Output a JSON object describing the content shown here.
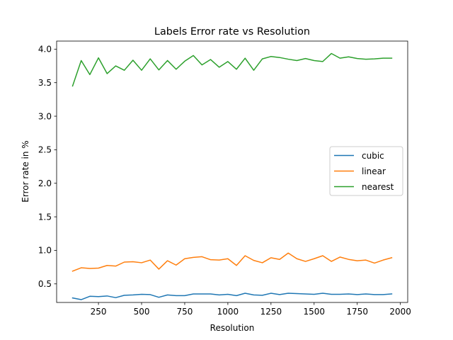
{
  "chart_data": {
    "type": "line",
    "title": "Labels Error rate vs Resolution",
    "xlabel": "Resolution",
    "ylabel": "Error rate in %",
    "xlim": [
      7.5,
      2042.5
    ],
    "ylim": [
      0.223,
      4.12
    ],
    "xticks": [
      250,
      500,
      750,
      1000,
      1250,
      1500,
      1750,
      2000
    ],
    "yticks": [
      0.5,
      1.0,
      1.5,
      2.0,
      2.5,
      3.0,
      3.5,
      4.0
    ],
    "xtick_labels": [
      "250",
      "500",
      "750",
      "1000",
      "1250",
      "1500",
      "1750",
      "2000"
    ],
    "ytick_labels": [
      "0.5",
      "1.0",
      "1.5",
      "2.0",
      "2.5",
      "3.0",
      "3.5",
      "4.0"
    ],
    "grid": false,
    "legend_position": "center-right",
    "x": [
      100,
      150,
      200,
      250,
      300,
      350,
      400,
      450,
      500,
      550,
      600,
      650,
      700,
      750,
      800,
      850,
      900,
      950,
      1000,
      1050,
      1100,
      1150,
      1200,
      1250,
      1300,
      1350,
      1400,
      1450,
      1500,
      1550,
      1600,
      1650,
      1700,
      1750,
      1800,
      1850,
      1900,
      1950
    ],
    "series": [
      {
        "name": "cubic",
        "color": "#1f77b4",
        "values": [
          0.29,
          0.265,
          0.315,
          0.31,
          0.32,
          0.295,
          0.33,
          0.335,
          0.345,
          0.34,
          0.3,
          0.335,
          0.325,
          0.325,
          0.35,
          0.35,
          0.35,
          0.335,
          0.345,
          0.325,
          0.36,
          0.335,
          0.33,
          0.36,
          0.34,
          0.36,
          0.355,
          0.35,
          0.345,
          0.36,
          0.345,
          0.345,
          0.35,
          0.34,
          0.35,
          0.34,
          0.34,
          0.35
        ]
      },
      {
        "name": "linear",
        "color": "#ff7f0e",
        "values": [
          0.69,
          0.74,
          0.73,
          0.735,
          0.775,
          0.765,
          0.825,
          0.83,
          0.815,
          0.855,
          0.72,
          0.845,
          0.78,
          0.875,
          0.895,
          0.905,
          0.86,
          0.855,
          0.875,
          0.775,
          0.92,
          0.85,
          0.815,
          0.89,
          0.865,
          0.96,
          0.875,
          0.835,
          0.875,
          0.92,
          0.835,
          0.9,
          0.865,
          0.845,
          0.855,
          0.81,
          0.855,
          0.89
        ]
      },
      {
        "name": "nearest",
        "color": "#2ca02c",
        "values": [
          3.45,
          3.83,
          3.62,
          3.87,
          3.635,
          3.75,
          3.685,
          3.835,
          3.685,
          3.855,
          3.69,
          3.83,
          3.7,
          3.82,
          3.905,
          3.765,
          3.845,
          3.73,
          3.815,
          3.7,
          3.865,
          3.685,
          3.855,
          3.89,
          3.875,
          3.85,
          3.83,
          3.86,
          3.83,
          3.815,
          3.935,
          3.865,
          3.885,
          3.86,
          3.85,
          3.855,
          3.865,
          3.865
        ]
      }
    ]
  }
}
